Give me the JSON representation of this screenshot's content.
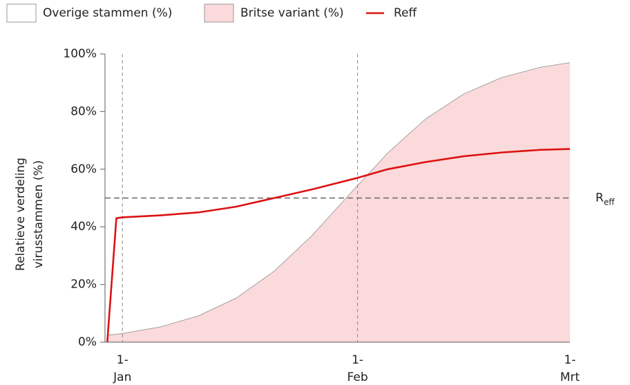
{
  "chart_data": {
    "type": "combo",
    "y_label": [
      "Relatieve verdeling",
      "virusstammen (%)"
    ],
    "xlim": [
      -2.3,
      59
    ],
    "xticks": [
      {
        "value": 0,
        "label": "1-\nJan"
      },
      {
        "value": 31,
        "label": "1-\nFeb"
      },
      {
        "value": 59,
        "label": "1-\nMrt"
      }
    ],
    "ylim": [
      0,
      100
    ],
    "yticks": [
      {
        "value": 0,
        "label": "0%"
      },
      {
        "value": 20,
        "label": "20%"
      },
      {
        "value": 40,
        "label": "40%"
      },
      {
        "value": 60,
        "label": "60%"
      },
      {
        "value": 80,
        "label": "80%"
      },
      {
        "value": 100,
        "label": "100%"
      }
    ],
    "reference_line": {
      "value": 50,
      "label": "R",
      "label_subscript": "eff"
    },
    "series": [
      {
        "name": "Overige stammen (%)",
        "type": "background",
        "color": "#ffffff"
      },
      {
        "name": "Britse variant (%)",
        "type": "area",
        "color": "#fbdadb",
        "x": [
          -2,
          0,
          5,
          10,
          15,
          20,
          25,
          30,
          35,
          40,
          45,
          50,
          55,
          59
        ],
        "values": [
          2.4,
          3.0,
          5.3,
          9.1,
          15.3,
          24.6,
          37.0,
          51.5,
          65.7,
          77.5,
          86.1,
          91.8,
          95.3,
          97.0
        ]
      },
      {
        "name": "Reff",
        "type": "line",
        "color": "#dd1111",
        "x": [
          -2,
          -0.8,
          0,
          5,
          10,
          15,
          20,
          25,
          31,
          35,
          40,
          45,
          50,
          55,
          59
        ],
        "values": [
          0,
          43,
          43.3,
          44,
          45,
          47,
          50,
          53,
          57,
          60,
          62.5,
          64.5,
          65.8,
          66.7,
          67
        ]
      }
    ]
  }
}
